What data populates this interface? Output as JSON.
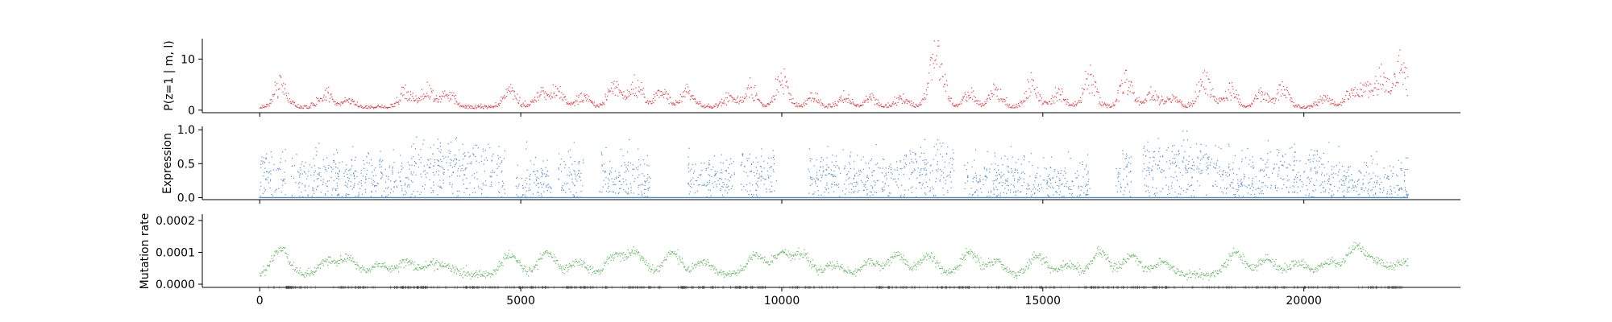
{
  "chart_data": [
    {
      "type": "scatter",
      "panel": "top",
      "ylabel": "P(z=1 | m, l)",
      "yticks": [
        "0",
        "10"
      ],
      "ytick_values": [
        0,
        10
      ],
      "ylim": [
        -0.5,
        14
      ],
      "xlim": [
        -1100,
        23000
      ],
      "color": "#e8373f",
      "series": [
        {
          "baseline_level": 0.3,
          "peaks": [
            [
              400,
              5
            ],
            [
              1250,
              3
            ],
            [
              1700,
              1.5
            ],
            [
              2800,
              3.5
            ],
            [
              3200,
              3.5
            ],
            [
              3600,
              3
            ],
            [
              4800,
              4
            ],
            [
              5400,
              3
            ],
            [
              5700,
              3.5
            ],
            [
              6200,
              2.5
            ],
            [
              6800,
              5
            ],
            [
              7200,
              5
            ],
            [
              7700,
              4
            ],
            [
              8200,
              3.5
            ],
            [
              9000,
              2
            ],
            [
              9400,
              4
            ],
            [
              10000,
              6
            ],
            [
              10600,
              2
            ],
            [
              11200,
              2
            ],
            [
              11700,
              2
            ],
            [
              12300,
              2
            ],
            [
              12900,
              4
            ],
            [
              13000,
              9
            ],
            [
              13600,
              3
            ],
            [
              14100,
              4
            ],
            [
              14800,
              5
            ],
            [
              15300,
              3
            ],
            [
              15900,
              6
            ],
            [
              16600,
              6
            ],
            [
              17100,
              3
            ],
            [
              17500,
              2
            ],
            [
              18100,
              6
            ],
            [
              18600,
              4
            ],
            [
              19200,
              3
            ],
            [
              19600,
              4
            ],
            [
              20400,
              2
            ],
            [
              20900,
              3
            ],
            [
              21200,
              4
            ],
            [
              21500,
              6
            ],
            [
              21850,
              9
            ]
          ],
          "x_range": [
            0,
            22000
          ],
          "n_points": 1900
        }
      ]
    },
    {
      "type": "scatter",
      "panel": "middle",
      "ylabel": "Expression",
      "yticks": [
        "0.0",
        "0.5",
        "1.0"
      ],
      "ytick_values": [
        0.0,
        0.5,
        1.0
      ],
      "ylim": [
        -0.03,
        1.05
      ],
      "xlim": [
        -1100,
        23000
      ],
      "color": "#4e8fd0",
      "series": [
        {
          "baseline_level": 0.0,
          "active_regions": [
            [
              0,
              500
            ],
            [
              600,
              1500
            ],
            [
              1500,
              2900
            ],
            [
              2900,
              4700
            ],
            [
              4900,
              5600
            ],
            [
              5700,
              6200
            ],
            [
              6500,
              7500
            ],
            [
              8200,
              9100
            ],
            [
              9200,
              9900
            ],
            [
              10500,
              12300
            ],
            [
              12300,
              13300
            ],
            [
              13500,
              15000
            ],
            [
              15000,
              15900
            ],
            [
              16400,
              16700
            ],
            [
              16900,
              18400
            ],
            [
              18400,
              19200
            ],
            [
              19200,
              20500
            ],
            [
              20500,
              22000
            ]
          ],
          "x_range": [
            0,
            22000
          ],
          "n_points": 2200
        }
      ]
    },
    {
      "type": "scatter",
      "panel": "bottom",
      "ylabel": "Mutation rate",
      "yticks": [
        "0.0000",
        "0.0001",
        "0.0002"
      ],
      "ytick_values": [
        0.0,
        0.0001,
        0.0002
      ],
      "ylim": [
        -1e-05,
        0.00022
      ],
      "xlim": [
        -1100,
        23000
      ],
      "xticks": [
        "0",
        "5000",
        "10000",
        "15000",
        "20000"
      ],
      "xtick_values": [
        0,
        5000,
        10000,
        15000,
        20000
      ],
      "color": "#5fb85c",
      "series": [
        {
          "baseline_level": 3e-05,
          "bumps": [
            [
              400,
              0.00011
            ],
            [
              1300,
              7e-05
            ],
            [
              1700,
              8e-05
            ],
            [
              2300,
              6e-05
            ],
            [
              2800,
              7e-05
            ],
            [
              3300,
              6e-05
            ],
            [
              3600,
              5e-05
            ],
            [
              4800,
              9e-05
            ],
            [
              5500,
              0.0001
            ],
            [
              6100,
              7e-05
            ],
            [
              6800,
              9e-05
            ],
            [
              7200,
              0.0001
            ],
            [
              7900,
              0.0001
            ],
            [
              8500,
              7e-05
            ],
            [
              9500,
              9e-05
            ],
            [
              10000,
              0.0001
            ],
            [
              10400,
              9e-05
            ],
            [
              11000,
              6e-05
            ],
            [
              11700,
              7e-05
            ],
            [
              12200,
              9e-05
            ],
            [
              12800,
              9e-05
            ],
            [
              13600,
              0.0001
            ],
            [
              14100,
              7e-05
            ],
            [
              14900,
              9e-05
            ],
            [
              15500,
              6e-05
            ],
            [
              16100,
              0.0001
            ],
            [
              16700,
              9e-05
            ],
            [
              17300,
              7e-05
            ],
            [
              18700,
              0.0001
            ],
            [
              19300,
              8e-05
            ],
            [
              19900,
              7e-05
            ],
            [
              20500,
              7e-05
            ],
            [
              21000,
              0.00012
            ],
            [
              21400,
              7e-05
            ],
            [
              21900,
              7e-05
            ]
          ],
          "x_range": [
            0,
            22000
          ],
          "n_points": 2000
        }
      ],
      "rug": {
        "color": "#555555",
        "dense_regions": [
          [
            500,
            700
          ],
          [
            1500,
            2100
          ],
          [
            2500,
            3200
          ],
          [
            3900,
            4500
          ],
          [
            4800,
            5500
          ],
          [
            5800,
            6700
          ],
          [
            6900,
            7700
          ],
          [
            8000,
            8700
          ],
          [
            9100,
            9700
          ],
          [
            9900,
            11100
          ],
          [
            11800,
            12600
          ],
          [
            13000,
            13600
          ],
          [
            14000,
            15000
          ],
          [
            15800,
            16600
          ],
          [
            16700,
            17400
          ],
          [
            18400,
            19500
          ],
          [
            19600,
            20700
          ],
          [
            21200,
            21900
          ]
        ],
        "n_marks": 700
      }
    }
  ]
}
